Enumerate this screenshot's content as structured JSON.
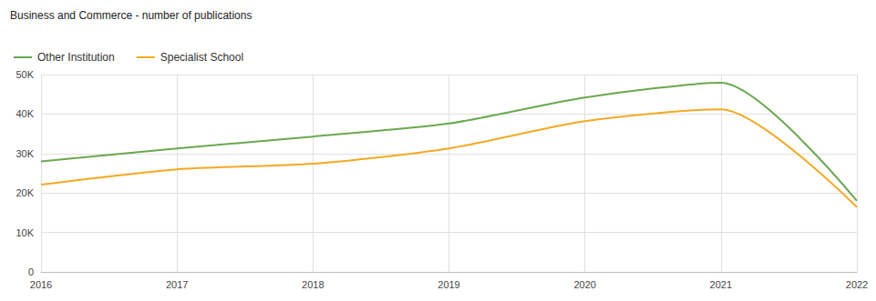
{
  "chart_data": {
    "type": "line",
    "title": "Business and Commerce - number of publications",
    "categories": [
      "2016",
      "2017",
      "2018",
      "2019",
      "2020",
      "2021",
      "2022"
    ],
    "series": [
      {
        "name": "Other Institution",
        "color": "#6aa84f",
        "values": [
          28000,
          31300,
          34300,
          37600,
          44200,
          47900,
          18000
        ]
      },
      {
        "name": "Specialist School",
        "color": "#f4a922",
        "values": [
          22100,
          26000,
          27400,
          31300,
          38200,
          41200,
          16400
        ]
      }
    ],
    "ylim": [
      0,
      50000
    ],
    "yticks": [
      0,
      {
        "value": 10000,
        "label": "10K"
      },
      {
        "value": 20000,
        "label": "20K"
      },
      {
        "value": 30000,
        "label": "30K"
      },
      {
        "value": 40000,
        "label": "40K"
      },
      {
        "value": 50000,
        "label": "50K"
      }
    ],
    "grid": true,
    "legend": "top-left"
  }
}
